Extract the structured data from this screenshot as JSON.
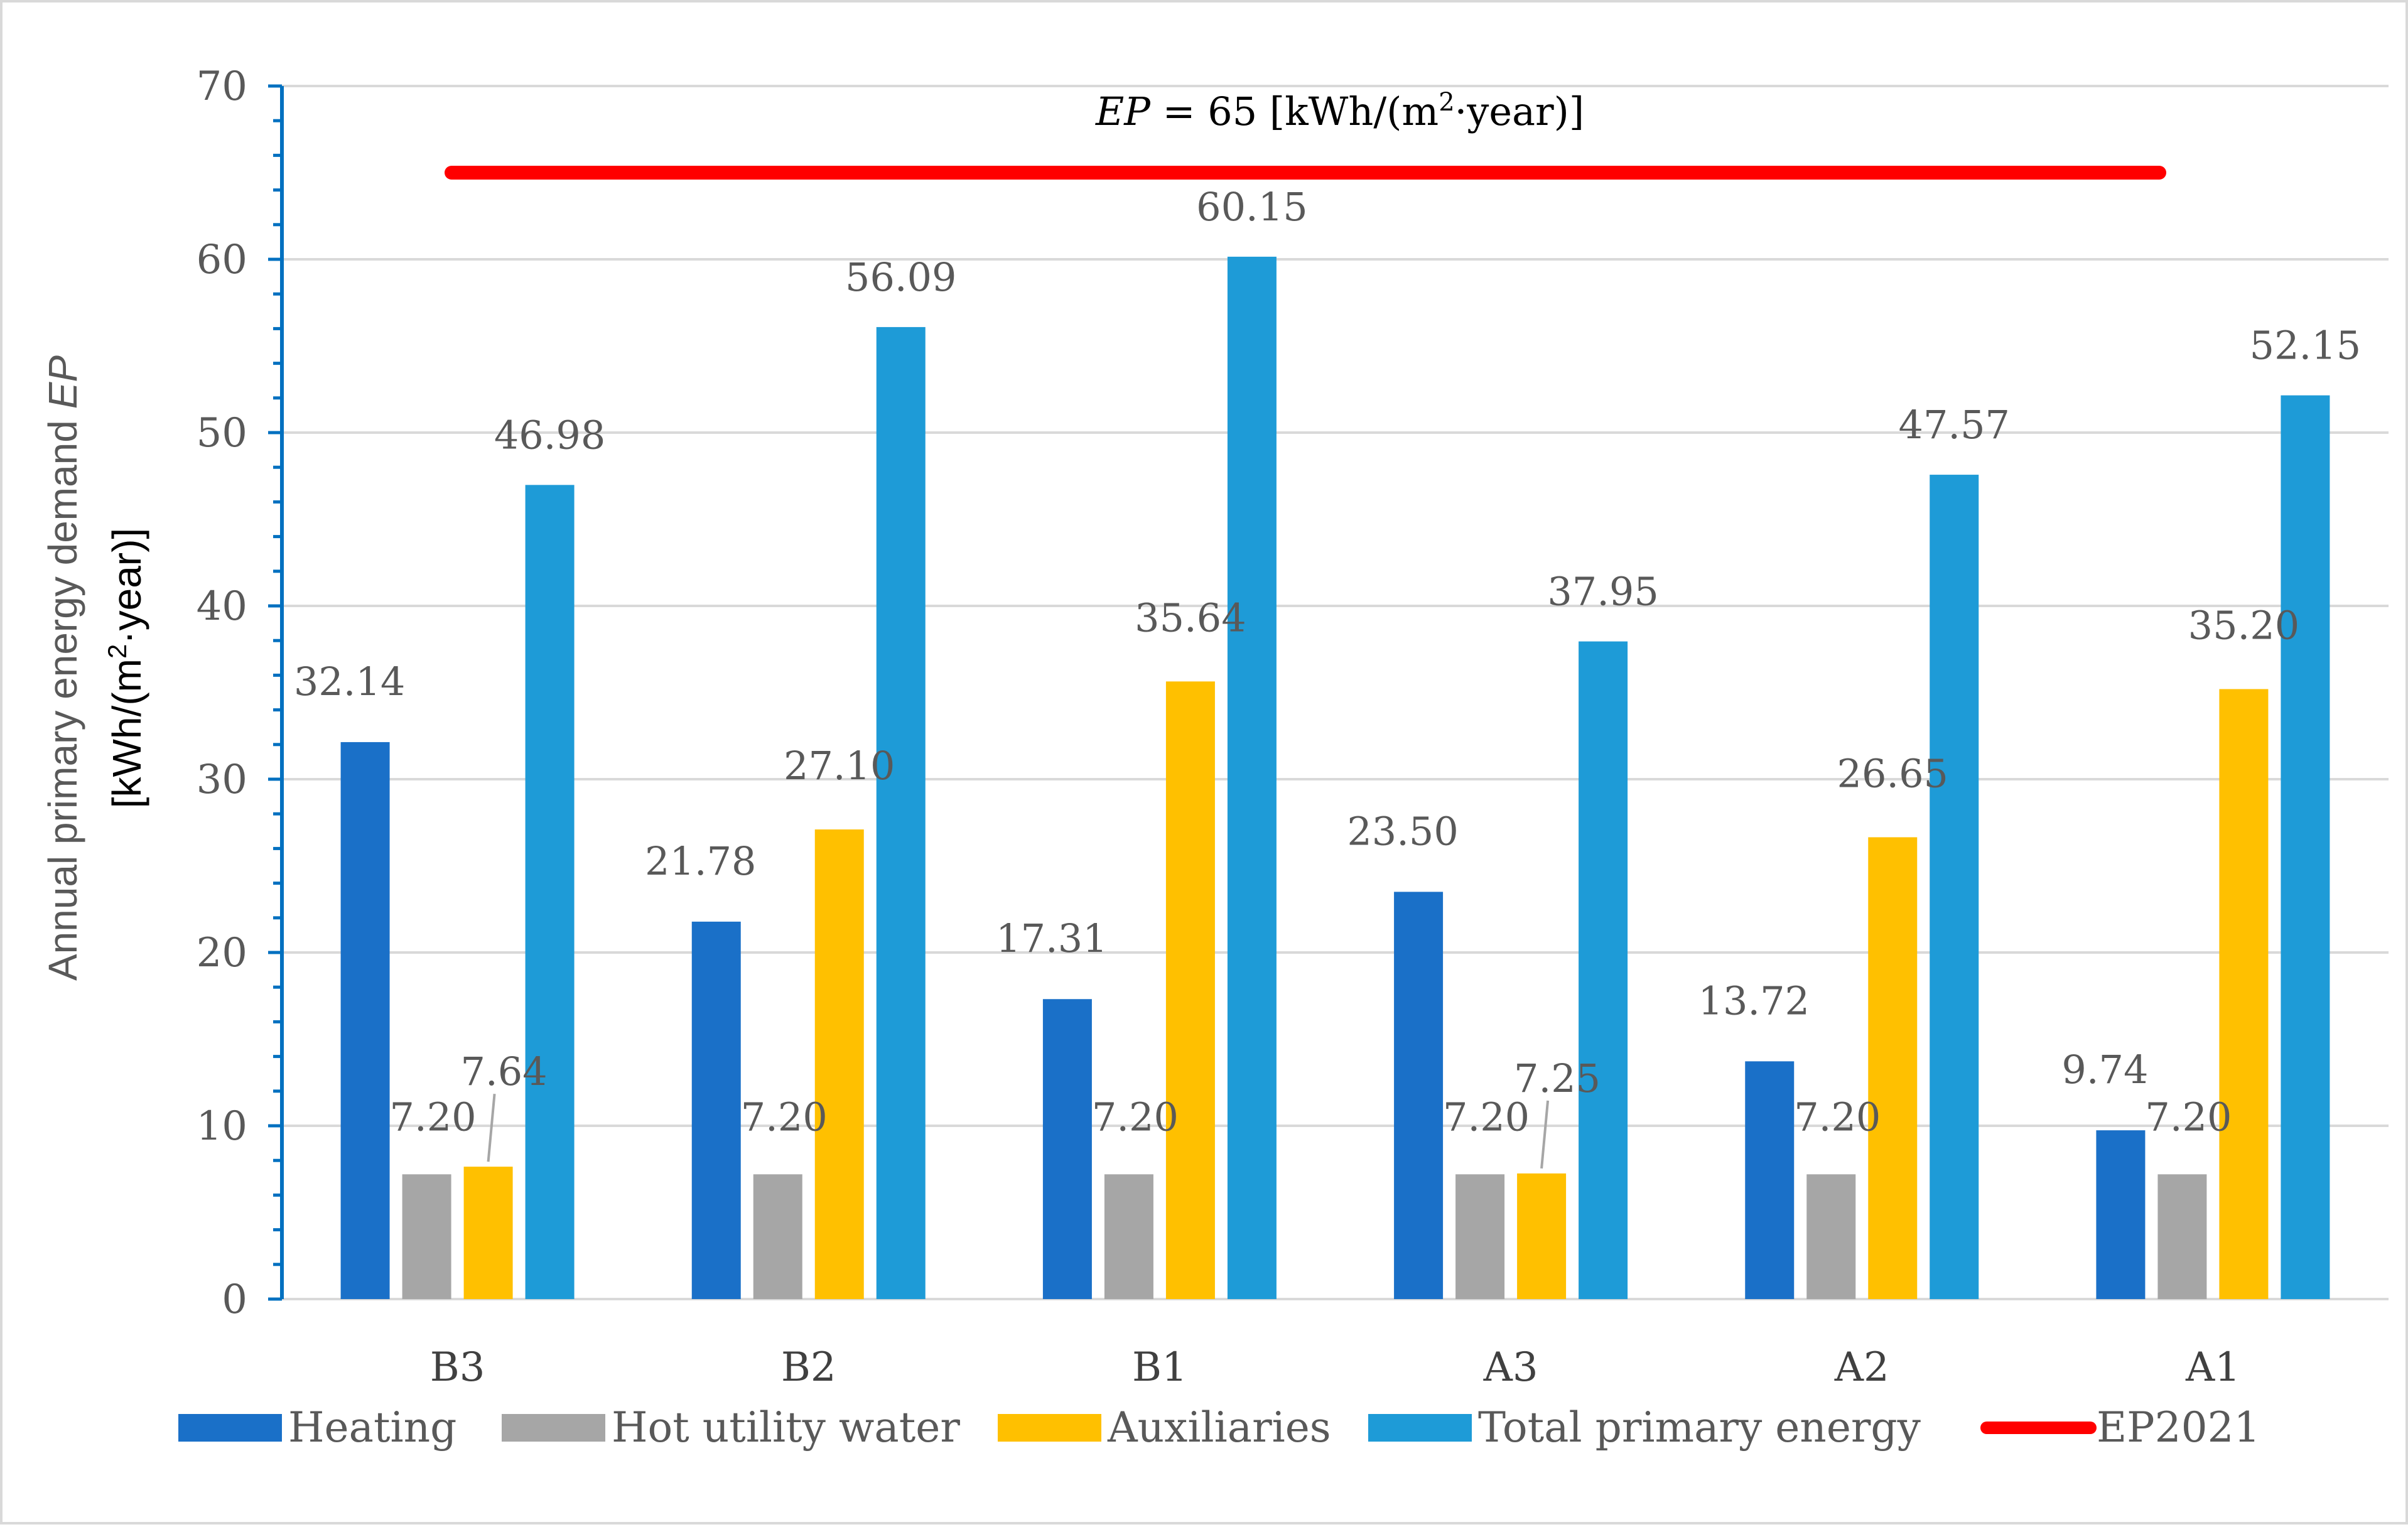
{
  "chart_data": {
    "type": "bar",
    "title": "",
    "xlabel": "",
    "ylabel": {
      "line1_prefix": "Annual primary energy demand ",
      "line1_italic": "EP",
      "line2_prefix": "[kWh/(m",
      "line2_sup": "2",
      "line2_suffix": "·year)]"
    },
    "ylim": [
      0,
      70
    ],
    "yticks": [
      "0",
      "10",
      "20",
      "30",
      "40",
      "50",
      "60",
      "70"
    ],
    "ytick_values": [
      0,
      10,
      20,
      30,
      40,
      50,
      60,
      70
    ],
    "categories": [
      "B3",
      "B2",
      "B1",
      "A3",
      "A2",
      "A1"
    ],
    "series": [
      {
        "name": "Heating",
        "color": "#1a70c8",
        "values": [
          32.14,
          21.78,
          17.31,
          23.5,
          13.72,
          9.74
        ],
        "labels": [
          "32.14",
          "21.78",
          "17.31",
          "23.50",
          "13.72",
          "9.74"
        ]
      },
      {
        "name": "Hot utility water",
        "color": "#a6a6a6",
        "values": [
          7.2,
          7.2,
          7.2,
          7.2,
          7.2,
          7.2
        ],
        "labels": [
          "7.20",
          "7.20",
          "7.20",
          "7.20",
          "7.20",
          "7.20"
        ]
      },
      {
        "name": "Auxiliaries",
        "color": "#ffc000",
        "values": [
          7.64,
          27.1,
          35.64,
          7.25,
          26.65,
          35.2
        ],
        "labels": [
          "7.64",
          "27.10",
          "35.64",
          "7.25",
          "26.65",
          "35.20"
        ]
      },
      {
        "name": "Total primary energy",
        "color": "#1e9bd7",
        "values": [
          46.98,
          56.09,
          60.15,
          37.95,
          47.57,
          52.15
        ],
        "labels": [
          "46.98",
          "56.09",
          "60.15",
          "37.95",
          "47.57",
          "52.15"
        ]
      }
    ],
    "reference_line": {
      "name": "EP2021",
      "value": 65,
      "color": "#ff0000",
      "annotation_italic": "EP",
      "annotation_prefix": " = 65 [kWh/(m",
      "annotation_sup": "2",
      "annotation_suffix": "·year)]"
    },
    "grid": true,
    "legend": "bottom",
    "colors": {
      "axis": "#0070c0",
      "grid": "#d9d9d9",
      "label": "#595959",
      "category_text": "#404040"
    }
  }
}
